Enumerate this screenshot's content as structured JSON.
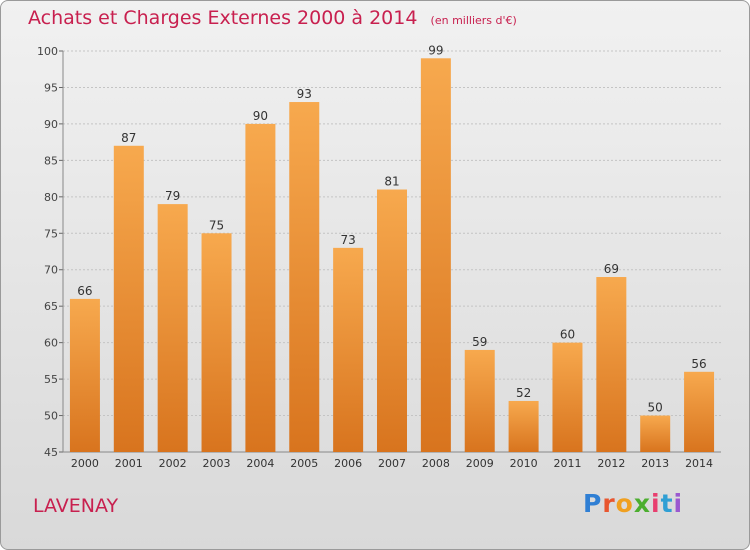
{
  "chart_data": {
    "type": "bar",
    "title": "Achats et Charges Externes 2000 à 2014",
    "unit_label": "(en milliers d'€)",
    "categories": [
      "2000",
      "2001",
      "2002",
      "2003",
      "2004",
      "2005",
      "2006",
      "2007",
      "2008",
      "2009",
      "2010",
      "2011",
      "2012",
      "2013",
      "2014"
    ],
    "values": [
      66,
      87,
      79,
      75,
      90,
      93,
      73,
      81,
      99,
      59,
      52,
      60,
      69,
      50,
      56
    ],
    "ylim": [
      45,
      100
    ],
    "yticks": [
      45,
      50,
      55,
      60,
      65,
      70,
      75,
      80,
      85,
      90,
      95,
      100
    ],
    "grid": true,
    "data_labels": true,
    "bar_color_light": "#f7a94e",
    "bar_color_dark": "#d8741e"
  },
  "footer": {
    "location": "LAVENAY",
    "logo_letters": [
      {
        "ch": "P",
        "color": "#2f7fd4"
      },
      {
        "ch": "r",
        "color": "#e8562f"
      },
      {
        "ch": "o",
        "color": "#f0a020"
      },
      {
        "ch": "x",
        "color": "#4cae2f"
      },
      {
        "ch": "i",
        "color": "#e83f6f"
      },
      {
        "ch": "t",
        "color": "#2f9fd4"
      },
      {
        "ch": "i",
        "color": "#9b59d0"
      }
    ]
  }
}
